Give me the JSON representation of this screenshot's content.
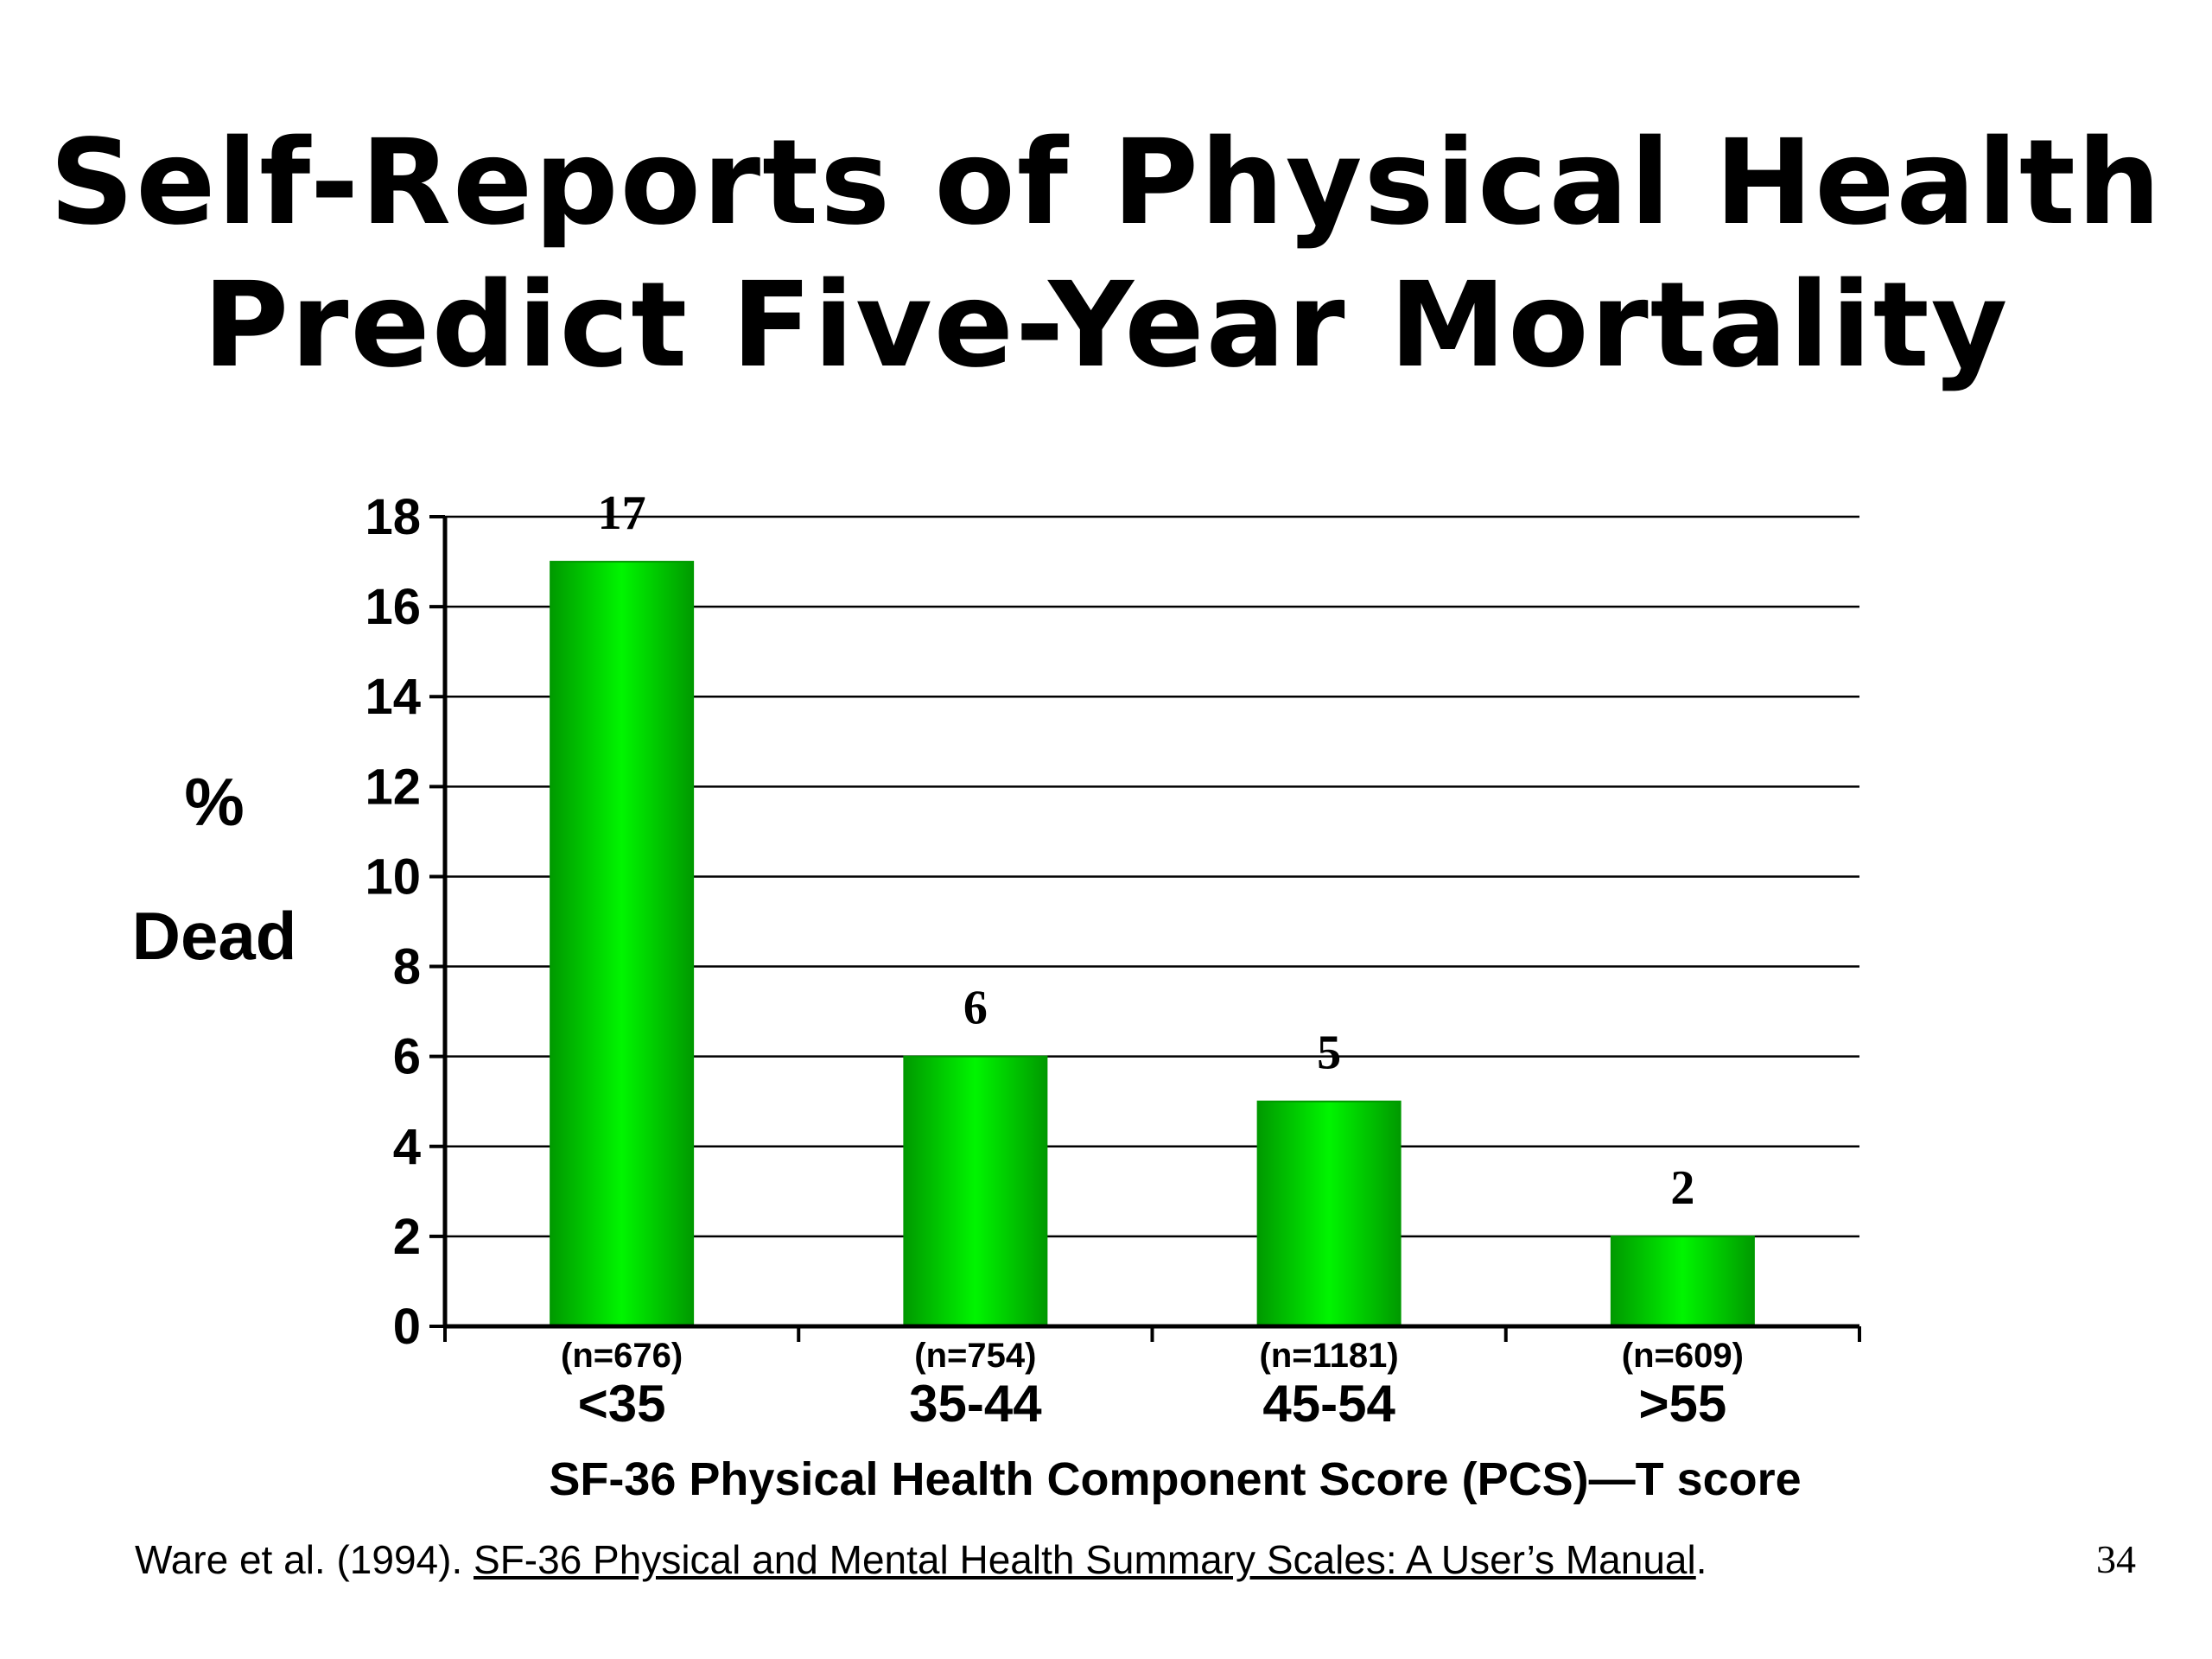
{
  "slide": {
    "title_line1": "Self-Reports of Physical Health",
    "title_line2": "Predict Five-Year Mortality",
    "citation_prefix": "Ware et al.  (1994).  ",
    "citation_book": "SF-36 Physical and Mental Health Summary Scales: A User’s Manual",
    "citation_suffix": ".",
    "page_number": "34"
  },
  "chart_data": {
    "type": "bar",
    "title": "",
    "categories": [
      "<35",
      "35-44",
      "45-54",
      ">55"
    ],
    "category_counts": [
      "(n=676)",
      "(n=754)",
      "(n=1181)",
      "(n=609)"
    ],
    "values": [
      17,
      6,
      5,
      2
    ],
    "data_labels": [
      "17",
      "6",
      "5",
      "2"
    ],
    "ylabel_line1": "%",
    "ylabel_line2": "Dead",
    "xlabel": "SF-36 Physical Health Component Score (PCS)—T score",
    "ylim": [
      0,
      18
    ],
    "yticks": [
      0,
      2,
      4,
      6,
      8,
      10,
      12,
      14,
      16,
      18
    ],
    "grid": true,
    "legend": "none",
    "bar_color": "#00dd00",
    "bar_edge_color": "#009900"
  }
}
